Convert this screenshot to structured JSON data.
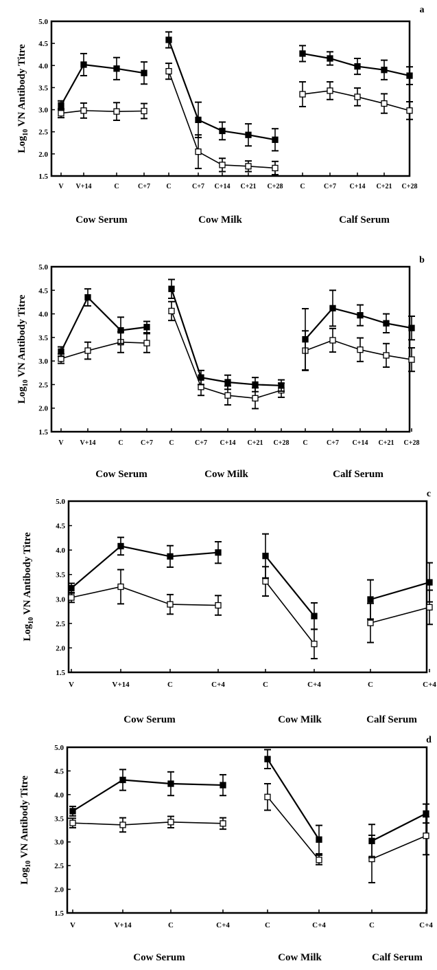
{
  "chart_data": [
    {
      "type": "line",
      "panel_label": "a",
      "ylabel_main": "Log",
      "ylabel_sub": "10",
      "ylabel_rest": " VN Antibody Titre",
      "ylim": [
        1.5,
        5.0
      ],
      "yticks": [
        "1.5",
        "2.0",
        "2.5",
        "3.0",
        "3.5",
        "4.0",
        "4.5",
        "5.0"
      ],
      "x": [
        "V",
        "V+14",
        "C",
        "C+7",
        "C",
        "C+7",
        "C+14",
        "C+21",
        "C+28",
        "C",
        "C+7",
        "C+14",
        "C+21",
        "C+28"
      ],
      "groups": [
        {
          "label": "Cow Serum",
          "indices": [
            0,
            1,
            2,
            3
          ]
        },
        {
          "label": "Cow Milk",
          "indices": [
            4,
            5,
            6,
            7,
            8
          ]
        },
        {
          "label": "Calf Serum",
          "indices": [
            9,
            10,
            11,
            12,
            13
          ]
        }
      ],
      "series": [
        {
          "marker": "filled",
          "values": [
            3.1,
            4.02,
            3.93,
            3.83,
            4.58,
            2.77,
            2.52,
            2.43,
            2.32,
            4.27,
            4.16,
            3.98,
            3.9,
            3.77
          ],
          "errors": [
            0.1,
            0.25,
            0.25,
            0.25,
            0.18,
            0.4,
            0.2,
            0.25,
            0.25,
            0.18,
            0.15,
            0.18,
            0.22,
            0.2
          ]
        },
        {
          "marker": "open",
          "values": [
            2.92,
            2.98,
            2.96,
            2.97,
            3.87,
            2.05,
            1.75,
            1.72,
            1.68,
            3.35,
            3.43,
            3.29,
            3.14,
            2.98
          ],
          "errors": [
            0.1,
            0.17,
            0.2,
            0.17,
            0.18,
            0.38,
            0.15,
            0.12,
            0.15,
            0.28,
            0.2,
            0.2,
            0.22,
            0.2
          ]
        }
      ]
    },
    {
      "type": "line",
      "panel_label": "b",
      "ylabel_main": "Log",
      "ylabel_sub": "10",
      "ylabel_rest": " VN Antibody Titre",
      "ylim": [
        1.5,
        5.0
      ],
      "yticks": [
        "1.5",
        "2.0",
        "2.5",
        "3.0",
        "3.5",
        "4.0",
        "4.5",
        "5.0"
      ],
      "x": [
        "V",
        "V+14",
        "C",
        "C+7",
        "C",
        "C+7",
        "C+14",
        "C+21",
        "C+28",
        "C",
        "C+7",
        "C+14",
        "C+21",
        "C+28"
      ],
      "groups": [
        {
          "label": "Cow Serum",
          "indices": [
            0,
            1,
            2,
            3
          ]
        },
        {
          "label": "Cow Milk",
          "indices": [
            4,
            5,
            6,
            7,
            8
          ]
        },
        {
          "label": "Calf Serum",
          "indices": [
            9,
            10,
            11,
            12,
            13
          ]
        }
      ],
      "series": [
        {
          "marker": "filled",
          "values": [
            3.2,
            4.35,
            3.65,
            3.72,
            4.53,
            2.65,
            2.55,
            2.5,
            2.48,
            3.46,
            4.12,
            3.97,
            3.8,
            3.7
          ],
          "errors": [
            0.1,
            0.18,
            0.28,
            0.12,
            0.2,
            0.15,
            0.15,
            0.15,
            0.12,
            0.65,
            0.38,
            0.22,
            0.2,
            0.25
          ]
        },
        {
          "marker": "open",
          "values": [
            3.05,
            3.22,
            3.4,
            3.38,
            4.06,
            2.45,
            2.27,
            2.21,
            2.38,
            3.22,
            3.44,
            3.24,
            3.12,
            3.03
          ],
          "errors": [
            0.1,
            0.18,
            0.22,
            0.2,
            0.2,
            0.18,
            0.2,
            0.22,
            0.15,
            0.42,
            0.25,
            0.25,
            0.25,
            0.25
          ]
        }
      ]
    },
    {
      "type": "line",
      "panel_label": "c",
      "ylabel_main": "Log",
      "ylabel_sub": "10",
      "ylabel_rest": " VN Antibody Titre",
      "ylim": [
        1.5,
        5.0
      ],
      "yticks": [
        "1.5",
        "2.0",
        "2.5",
        "3.0",
        "3.5",
        "4.0",
        "4.5",
        "5.0"
      ],
      "x": [
        "V",
        "V+14",
        "C",
        "C+4",
        "C",
        "C+4",
        "C",
        "C+4"
      ],
      "groups": [
        {
          "label": "Cow Serum",
          "indices": [
            0,
            1,
            2,
            3
          ]
        },
        {
          "label": "Cow Milk",
          "indices": [
            4,
            5
          ]
        },
        {
          "label": "Calf Serum",
          "indices": [
            6,
            7
          ]
        }
      ],
      "series": [
        {
          "marker": "filled",
          "values": [
            3.22,
            4.08,
            3.87,
            3.95,
            3.88,
            2.65,
            2.99,
            3.34
          ],
          "errors": [
            0.1,
            0.18,
            0.22,
            0.22,
            0.45,
            0.27,
            0.4,
            0.4
          ]
        },
        {
          "marker": "open",
          "values": [
            3.03,
            3.25,
            2.89,
            2.87,
            3.36,
            2.08,
            2.51,
            2.83
          ],
          "errors": [
            0.1,
            0.35,
            0.2,
            0.2,
            0.3,
            0.3,
            0.4,
            0.35
          ]
        }
      ]
    },
    {
      "type": "line",
      "panel_label": "d",
      "ylabel_main": "Log",
      "ylabel_sub": "10",
      "ylabel_rest": " VN Antibody Titre",
      "ylim": [
        1.5,
        5.0
      ],
      "yticks": [
        "1.5",
        "2.0",
        "2.5",
        "3.0",
        "3.5",
        "4.0",
        "4.5",
        "5.0"
      ],
      "x": [
        "V",
        "V+14",
        "C",
        "C+4",
        "C",
        "C+4",
        "C",
        "C+4"
      ],
      "groups": [
        {
          "label": "Cow Serum",
          "indices": [
            0,
            1,
            2,
            3
          ]
        },
        {
          "label": "Cow Milk",
          "indices": [
            4,
            5
          ]
        },
        {
          "label": "Calf Serum",
          "indices": [
            6,
            7
          ]
        }
      ],
      "series": [
        {
          "marker": "filled",
          "values": [
            3.65,
            4.31,
            4.23,
            4.2,
            4.75,
            3.05,
            3.02,
            3.6
          ],
          "errors": [
            0.1,
            0.22,
            0.25,
            0.22,
            0.2,
            0.3,
            0.35,
            0.2
          ]
        },
        {
          "marker": "open",
          "values": [
            3.4,
            3.36,
            3.42,
            3.39,
            3.95,
            2.62,
            2.64,
            3.13
          ],
          "errors": [
            0.1,
            0.15,
            0.12,
            0.12,
            0.28,
            0.1,
            0.5,
            0.4
          ]
        }
      ]
    }
  ]
}
